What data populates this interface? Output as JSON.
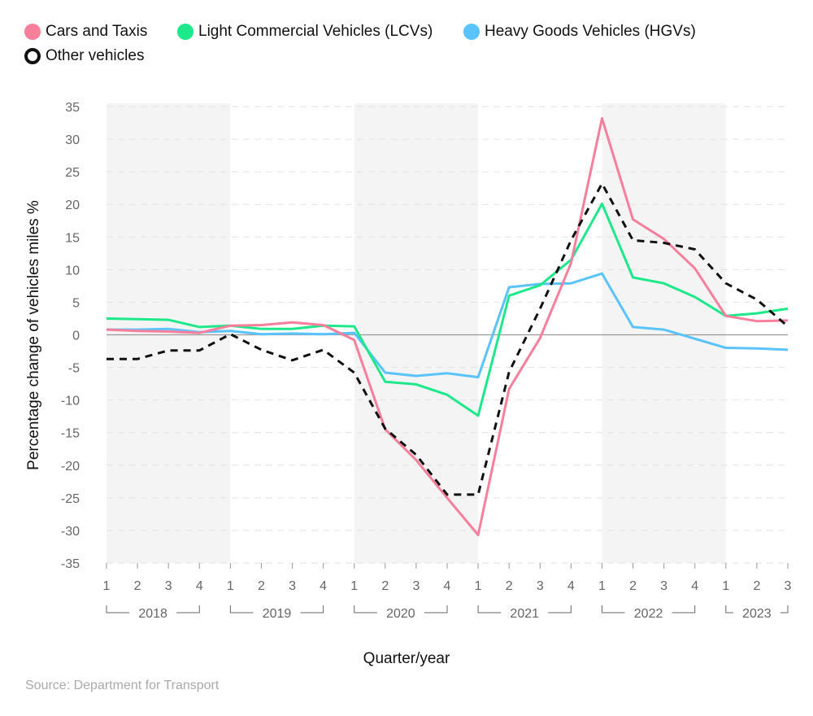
{
  "chart_data": {
    "type": "line",
    "xlabel": "Quarter/year",
    "ylabel": "Percentage change of vehicles miles %",
    "ylim": [
      -35,
      35
    ],
    "yticks": [
      35,
      30,
      25,
      20,
      15,
      10,
      5,
      0,
      -5,
      -10,
      -15,
      -20,
      -25,
      -30,
      -35
    ],
    "grid": true,
    "legend_position": "top-left",
    "years": [
      "2018",
      "2019",
      "2020",
      "2021",
      "2022",
      "2023"
    ],
    "categories": [
      "1",
      "2",
      "3",
      "4",
      "1",
      "2",
      "3",
      "4",
      "1",
      "2",
      "3",
      "4",
      "1",
      "2",
      "3",
      "4",
      "1",
      "2",
      "3",
      "4",
      "1",
      "2",
      "3"
    ],
    "series": [
      {
        "name": "Cars and Taxis",
        "color": "#f77f9b",
        "style": "solid",
        "values": [
          0.8,
          0.6,
          0.5,
          0.3,
          1.4,
          1.5,
          1.9,
          1.5,
          -0.8,
          -14.5,
          -19.2,
          -25.0,
          -30.7,
          -8.3,
          -0.5,
          11.0,
          33.2,
          17.7,
          14.7,
          10.2,
          2.9,
          2.1,
          2.2
        ]
      },
      {
        "name": "Light Commercial Vehicles (LCVs)",
        "color": "#1de88a",
        "style": "solid",
        "values": [
          2.5,
          2.4,
          2.3,
          1.2,
          1.4,
          0.9,
          0.9,
          1.4,
          1.3,
          -7.2,
          -7.6,
          -9.2,
          -12.4,
          6.0,
          7.6,
          11.5,
          20.1,
          8.8,
          7.9,
          5.8,
          2.9,
          3.3,
          4.0
        ]
      },
      {
        "name": "Heavy Goods Vehicles (HGVs)",
        "color": "#5ac3fb",
        "style": "solid",
        "values": [
          0.8,
          0.8,
          0.9,
          0.4,
          0.6,
          0.1,
          0.2,
          0.1,
          0.3,
          -5.8,
          -6.3,
          -5.9,
          -6.5,
          7.3,
          7.8,
          7.9,
          9.4,
          1.2,
          0.8,
          -0.6,
          -2.0,
          -2.1,
          -2.3
        ]
      },
      {
        "name": "Other vehicles",
        "color": "#111111",
        "style": "dashed",
        "values": [
          -3.7,
          -3.7,
          -2.4,
          -2.4,
          0.1,
          -2.3,
          -3.9,
          -2.3,
          -5.8,
          -14.4,
          -18.4,
          -24.5,
          -24.5,
          -5.7,
          4.0,
          14.5,
          23.2,
          14.5,
          14.1,
          13.1,
          7.9,
          5.4,
          1.3
        ]
      }
    ],
    "shaded_years": [
      "2018",
      "2020",
      "2022"
    ]
  },
  "source": "Source: Department for Transport"
}
